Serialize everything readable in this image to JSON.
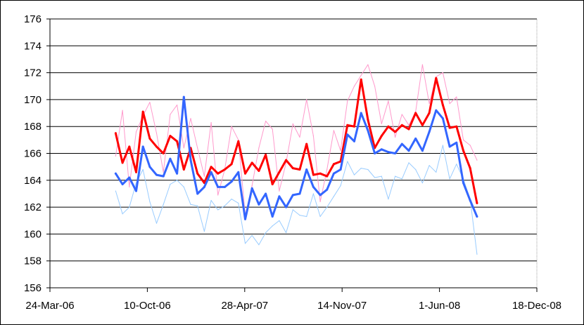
{
  "chart_data": {
    "type": "line",
    "title": "",
    "xlabel": "",
    "ylabel": "",
    "x_tick_labels": [
      "24-Mar-06",
      "10-Oct-06",
      "28-Apr-07",
      "14-Nov-07",
      "1-Jun-08",
      "18-Dec-08"
    ],
    "xlim": [
      "2006-03-24",
      "2008-12-18"
    ],
    "y_tick_labels": [
      "156",
      "158",
      "160",
      "162",
      "164",
      "166",
      "168",
      "170",
      "172",
      "174",
      "176"
    ],
    "ylim": [
      156,
      176
    ],
    "grid": "horizontal",
    "legend": "none",
    "series": [
      {
        "color": "#ff99cc",
        "style": "thin",
        "points": [
          [
            "2006-08-06",
            165.8
          ],
          [
            "2006-08-20",
            169.2
          ],
          [
            "2006-09-03",
            163.5
          ],
          [
            "2006-09-17",
            167.6
          ],
          [
            "2006-10-01",
            168.8
          ],
          [
            "2006-10-15",
            169.8
          ],
          [
            "2006-10-29",
            167.5
          ],
          [
            "2006-11-12",
            164.6
          ],
          [
            "2006-11-26",
            168.9
          ],
          [
            "2006-12-10",
            169.6
          ],
          [
            "2006-12-24",
            166.4
          ],
          [
            "2007-01-07",
            168.6
          ],
          [
            "2007-01-21",
            166.4
          ],
          [
            "2007-02-04",
            164.3
          ],
          [
            "2007-02-18",
            168.3
          ],
          [
            "2007-03-04",
            162.9
          ],
          [
            "2007-03-18",
            164.8
          ],
          [
            "2007-04-01",
            168.0
          ],
          [
            "2007-04-15",
            167.0
          ],
          [
            "2007-04-29",
            161.4
          ],
          [
            "2007-05-13",
            163.6
          ],
          [
            "2007-05-27",
            166.4
          ],
          [
            "2007-06-10",
            168.4
          ],
          [
            "2007-06-24",
            167.8
          ],
          [
            "2007-07-08",
            163.2
          ],
          [
            "2007-07-22",
            165.3
          ],
          [
            "2007-08-05",
            168.2
          ],
          [
            "2007-08-19",
            167.2
          ],
          [
            "2007-09-02",
            170.0
          ],
          [
            "2007-09-16",
            167.3
          ],
          [
            "2007-09-30",
            162.4
          ],
          [
            "2007-10-14",
            164.8
          ],
          [
            "2007-10-28",
            167.7
          ],
          [
            "2007-11-11",
            166.2
          ],
          [
            "2007-11-25",
            169.9
          ],
          [
            "2007-12-09",
            171.0
          ],
          [
            "2007-12-23",
            171.8
          ],
          [
            "2008-01-06",
            172.6
          ],
          [
            "2008-01-20",
            171.0
          ],
          [
            "2008-02-03",
            168.2
          ],
          [
            "2008-02-17",
            169.9
          ],
          [
            "2008-03-02",
            167.2
          ],
          [
            "2008-03-16",
            168.9
          ],
          [
            "2008-03-30",
            168.1
          ],
          [
            "2008-04-13",
            169.1
          ],
          [
            "2008-04-27",
            172.6
          ],
          [
            "2008-05-11",
            169.7
          ],
          [
            "2008-05-25",
            171.7
          ],
          [
            "2008-06-08",
            172.0
          ],
          [
            "2008-06-22",
            169.7
          ],
          [
            "2008-07-06",
            170.2
          ],
          [
            "2008-07-20",
            167.0
          ],
          [
            "2008-08-03",
            166.6
          ],
          [
            "2008-08-17",
            165.5
          ]
        ]
      },
      {
        "color": "#99ccff",
        "style": "thin",
        "points": [
          [
            "2006-08-06",
            163.2
          ],
          [
            "2006-08-20",
            161.5
          ],
          [
            "2006-09-03",
            162.0
          ],
          [
            "2006-09-17",
            163.8
          ],
          [
            "2006-10-01",
            164.8
          ],
          [
            "2006-10-15",
            162.4
          ],
          [
            "2006-10-29",
            160.8
          ],
          [
            "2006-11-12",
            162.2
          ],
          [
            "2006-11-26",
            163.7
          ],
          [
            "2006-12-10",
            164.0
          ],
          [
            "2006-12-24",
            163.5
          ],
          [
            "2007-01-07",
            162.2
          ],
          [
            "2007-01-21",
            162.1
          ],
          [
            "2007-02-04",
            160.2
          ],
          [
            "2007-02-18",
            162.5
          ],
          [
            "2007-03-04",
            161.8
          ],
          [
            "2007-03-18",
            162.1
          ],
          [
            "2007-04-01",
            162.6
          ],
          [
            "2007-04-15",
            162.3
          ],
          [
            "2007-04-29",
            159.3
          ],
          [
            "2007-05-13",
            159.9
          ],
          [
            "2007-05-27",
            159.2
          ],
          [
            "2007-06-10",
            160.1
          ],
          [
            "2007-06-24",
            160.6
          ],
          [
            "2007-07-08",
            161.0
          ],
          [
            "2007-07-22",
            160.1
          ],
          [
            "2007-08-05",
            161.8
          ],
          [
            "2007-08-19",
            161.4
          ],
          [
            "2007-09-02",
            161.3
          ],
          [
            "2007-09-16",
            163.0
          ],
          [
            "2007-09-30",
            161.3
          ],
          [
            "2007-10-14",
            162.0
          ],
          [
            "2007-10-28",
            162.8
          ],
          [
            "2007-11-11",
            163.6
          ],
          [
            "2007-11-25",
            165.4
          ],
          [
            "2007-12-09",
            164.4
          ],
          [
            "2007-12-23",
            164.9
          ],
          [
            "2008-01-06",
            164.8
          ],
          [
            "2008-01-20",
            164.2
          ],
          [
            "2008-02-03",
            164.3
          ],
          [
            "2008-02-17",
            162.6
          ],
          [
            "2008-03-02",
            164.3
          ],
          [
            "2008-03-16",
            164.1
          ],
          [
            "2008-03-30",
            165.3
          ],
          [
            "2008-04-13",
            164.8
          ],
          [
            "2008-04-27",
            163.8
          ],
          [
            "2008-05-11",
            165.1
          ],
          [
            "2008-05-25",
            164.6
          ],
          [
            "2008-06-08",
            166.6
          ],
          [
            "2008-06-22",
            164.1
          ],
          [
            "2008-07-06",
            165.2
          ],
          [
            "2008-07-20",
            164.1
          ],
          [
            "2008-08-03",
            162.6
          ],
          [
            "2008-08-17",
            158.5
          ]
        ]
      },
      {
        "color": "#ff0000",
        "style": "thick",
        "points": [
          [
            "2006-08-06",
            167.5
          ],
          [
            "2006-08-20",
            165.3
          ],
          [
            "2006-09-03",
            166.5
          ],
          [
            "2006-09-17",
            164.6
          ],
          [
            "2006-10-01",
            169.1
          ],
          [
            "2006-10-15",
            167.1
          ],
          [
            "2006-10-29",
            166.5
          ],
          [
            "2006-11-12",
            166.0
          ],
          [
            "2006-11-26",
            167.3
          ],
          [
            "2006-12-10",
            166.9
          ],
          [
            "2006-12-24",
            164.8
          ],
          [
            "2007-01-07",
            166.4
          ],
          [
            "2007-01-21",
            164.5
          ],
          [
            "2007-02-04",
            163.8
          ],
          [
            "2007-02-18",
            165.0
          ],
          [
            "2007-03-04",
            164.5
          ],
          [
            "2007-03-18",
            164.8
          ],
          [
            "2007-04-01",
            165.2
          ],
          [
            "2007-04-15",
            166.9
          ],
          [
            "2007-04-29",
            164.5
          ],
          [
            "2007-05-13",
            165.3
          ],
          [
            "2007-05-27",
            164.7
          ],
          [
            "2007-06-10",
            165.9
          ],
          [
            "2007-06-24",
            163.7
          ],
          [
            "2007-07-08",
            164.6
          ],
          [
            "2007-07-22",
            165.5
          ],
          [
            "2007-08-05",
            164.9
          ],
          [
            "2007-08-19",
            164.8
          ],
          [
            "2007-09-02",
            166.7
          ],
          [
            "2007-09-16",
            164.4
          ],
          [
            "2007-09-30",
            164.5
          ],
          [
            "2007-10-14",
            164.3
          ],
          [
            "2007-10-28",
            165.2
          ],
          [
            "2007-11-11",
            165.4
          ],
          [
            "2007-11-25",
            168.1
          ],
          [
            "2007-12-09",
            168.0
          ],
          [
            "2007-12-23",
            171.5
          ],
          [
            "2008-01-06",
            168.5
          ],
          [
            "2008-01-20",
            166.4
          ],
          [
            "2008-02-03",
            167.3
          ],
          [
            "2008-02-17",
            168.0
          ],
          [
            "2008-03-02",
            167.6
          ],
          [
            "2008-03-16",
            168.1
          ],
          [
            "2008-03-30",
            167.8
          ],
          [
            "2008-04-13",
            169.0
          ],
          [
            "2008-04-27",
            168.1
          ],
          [
            "2008-05-11",
            169.0
          ],
          [
            "2008-05-25",
            171.6
          ],
          [
            "2008-06-08",
            169.6
          ],
          [
            "2008-06-22",
            167.9
          ],
          [
            "2008-07-06",
            168.0
          ],
          [
            "2008-07-20",
            166.2
          ],
          [
            "2008-08-03",
            164.9
          ],
          [
            "2008-08-17",
            162.3
          ]
        ]
      },
      {
        "color": "#3366ff",
        "style": "thick",
        "points": [
          [
            "2006-08-06",
            164.5
          ],
          [
            "2006-08-20",
            163.7
          ],
          [
            "2006-09-03",
            164.2
          ],
          [
            "2006-09-17",
            163.2
          ],
          [
            "2006-10-01",
            166.5
          ],
          [
            "2006-10-15",
            165.0
          ],
          [
            "2006-10-29",
            164.4
          ],
          [
            "2006-11-12",
            164.3
          ],
          [
            "2006-11-26",
            165.6
          ],
          [
            "2006-12-10",
            164.5
          ],
          [
            "2006-12-24",
            170.2
          ],
          [
            "2007-01-07",
            165.5
          ],
          [
            "2007-01-21",
            163.0
          ],
          [
            "2007-02-04",
            163.5
          ],
          [
            "2007-02-18",
            164.6
          ],
          [
            "2007-03-04",
            163.5
          ],
          [
            "2007-03-18",
            163.5
          ],
          [
            "2007-04-01",
            163.9
          ],
          [
            "2007-04-15",
            164.6
          ],
          [
            "2007-04-29",
            161.1
          ],
          [
            "2007-05-13",
            163.4
          ],
          [
            "2007-05-27",
            162.2
          ],
          [
            "2007-06-10",
            163.0
          ],
          [
            "2007-06-24",
            161.3
          ],
          [
            "2007-07-08",
            162.8
          ],
          [
            "2007-07-22",
            162.0
          ],
          [
            "2007-08-05",
            162.9
          ],
          [
            "2007-08-19",
            163.0
          ],
          [
            "2007-09-02",
            164.8
          ],
          [
            "2007-09-16",
            163.5
          ],
          [
            "2007-09-30",
            162.9
          ],
          [
            "2007-10-14",
            163.3
          ],
          [
            "2007-10-28",
            164.5
          ],
          [
            "2007-11-11",
            164.8
          ],
          [
            "2007-11-25",
            167.4
          ],
          [
            "2007-12-09",
            166.9
          ],
          [
            "2007-12-23",
            169.0
          ],
          [
            "2008-01-06",
            167.7
          ],
          [
            "2008-01-20",
            166.0
          ],
          [
            "2008-02-03",
            166.3
          ],
          [
            "2008-02-17",
            166.1
          ],
          [
            "2008-03-02",
            166.0
          ],
          [
            "2008-03-16",
            166.7
          ],
          [
            "2008-03-30",
            166.2
          ],
          [
            "2008-04-13",
            167.1
          ],
          [
            "2008-04-27",
            166.2
          ],
          [
            "2008-05-11",
            167.6
          ],
          [
            "2008-05-25",
            169.2
          ],
          [
            "2008-06-08",
            168.6
          ],
          [
            "2008-06-22",
            166.5
          ],
          [
            "2008-07-06",
            166.8
          ],
          [
            "2008-07-20",
            163.8
          ],
          [
            "2008-08-03",
            162.5
          ],
          [
            "2008-08-17",
            161.3
          ]
        ]
      }
    ]
  }
}
